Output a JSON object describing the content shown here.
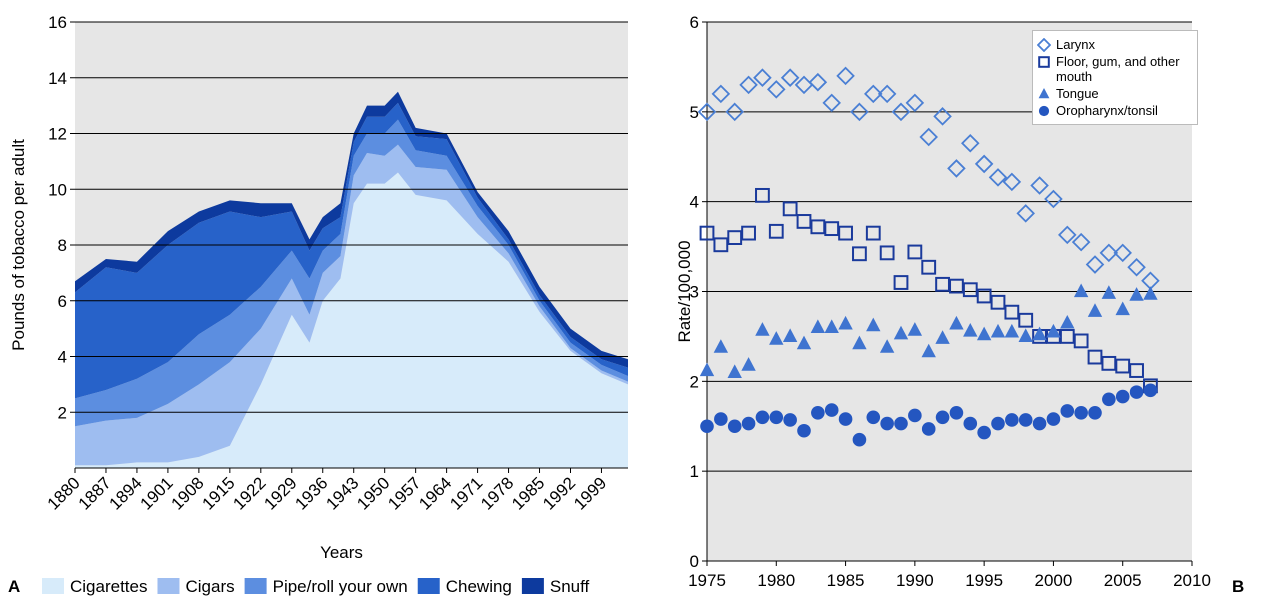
{
  "chart_data": [
    {
      "type": "stacked-area",
      "panel_label": "A",
      "xlabel": "Years",
      "ylabel": "Pounds of tobacco per adult",
      "x": [
        1880,
        1887,
        1894,
        1901,
        1908,
        1915,
        1922,
        1929,
        1933,
        1936,
        1940,
        1943,
        1946,
        1950,
        1953,
        1957,
        1964,
        1971,
        1978,
        1985,
        1992,
        1999,
        2005
      ],
      "series": [
        {
          "name": "Cigarettes",
          "color": "#d7ebfa",
          "values": [
            0.1,
            0.1,
            0.2,
            0.2,
            0.4,
            0.8,
            3.0,
            5.5,
            4.5,
            6.0,
            6.8,
            9.5,
            10.2,
            10.2,
            10.6,
            9.8,
            9.6,
            8.4,
            7.4,
            5.6,
            4.2,
            3.4,
            3.0
          ]
        },
        {
          "name": "Cigars",
          "color": "#9ebdf0",
          "values": [
            1.4,
            1.6,
            1.6,
            2.1,
            2.6,
            3.0,
            2.0,
            1.3,
            1.0,
            1.0,
            0.8,
            1.0,
            1.1,
            1.0,
            1.0,
            1.0,
            1.1,
            0.6,
            0.3,
            0.2,
            0.1,
            0.1,
            0.1
          ]
        },
        {
          "name": "Pipe/roll your own",
          "color": "#5c8ee0",
          "values": [
            1.0,
            1.1,
            1.4,
            1.5,
            1.8,
            1.7,
            1.5,
            1.0,
            1.3,
            0.8,
            0.8,
            0.7,
            0.7,
            0.8,
            0.9,
            0.6,
            0.5,
            0.4,
            0.3,
            0.2,
            0.2,
            0.2,
            0.2
          ]
        },
        {
          "name": "Chewing",
          "color": "#2762c9",
          "values": [
            3.8,
            4.4,
            3.8,
            4.2,
            4.0,
            3.7,
            2.5,
            1.4,
            1.0,
            0.8,
            0.6,
            0.5,
            0.6,
            0.6,
            0.6,
            0.5,
            0.6,
            0.3,
            0.2,
            0.2,
            0.2,
            0.2,
            0.3
          ]
        },
        {
          "name": "Snuff",
          "color": "#0d3a9e",
          "values": [
            0.4,
            0.3,
            0.4,
            0.5,
            0.4,
            0.4,
            0.5,
            0.3,
            0.4,
            0.4,
            0.5,
            0.3,
            0.4,
            0.4,
            0.4,
            0.3,
            0.2,
            0.2,
            0.3,
            0.3,
            0.3,
            0.3,
            0.3
          ]
        }
      ],
      "xlim": [
        1880,
        2005
      ],
      "xticks": [
        1880,
        1887,
        1894,
        1901,
        1908,
        1915,
        1922,
        1929,
        1936,
        1943,
        1950,
        1957,
        1964,
        1971,
        1978,
        1985,
        1992,
        1999
      ],
      "ylim": [
        0,
        16
      ],
      "yticks": [
        2,
        4,
        6,
        8,
        10,
        12,
        14,
        16
      ],
      "grid": true,
      "legend": "bottom"
    },
    {
      "type": "scatter",
      "panel_label": "B",
      "ylabel": "Rate/100,000",
      "x": [
        1975,
        1976,
        1977,
        1978,
        1979,
        1980,
        1981,
        1982,
        1983,
        1984,
        1985,
        1986,
        1987,
        1988,
        1989,
        1990,
        1991,
        1992,
        1993,
        1994,
        1995,
        1996,
        1997,
        1998,
        1999,
        2000,
        2001,
        2002,
        2003,
        2004,
        2005,
        2006,
        2007
      ],
      "series": [
        {
          "name": "Larynx",
          "color": "#4a7fd4",
          "marker": "diamond-open",
          "values": [
            5.0,
            5.2,
            5.0,
            5.3,
            5.38,
            5.25,
            5.38,
            5.3,
            5.33,
            5.1,
            5.4,
            5.0,
            5.2,
            5.2,
            5.0,
            5.1,
            4.72,
            4.95,
            4.37,
            4.65,
            4.42,
            4.27,
            4.22,
            3.87,
            4.18,
            4.03,
            3.63,
            3.55,
            3.3,
            3.43,
            3.43,
            3.27,
            3.12
          ]
        },
        {
          "name": "Floor, gum, and other mouth",
          "color": "#1a3a9c",
          "marker": "square-open",
          "values": [
            3.65,
            3.52,
            3.6,
            3.65,
            4.07,
            3.67,
            3.92,
            3.78,
            3.72,
            3.7,
            3.65,
            3.42,
            3.65,
            3.43,
            3.1,
            3.44,
            3.27,
            3.08,
            3.06,
            3.02,
            2.95,
            2.88,
            2.77,
            2.68,
            2.5,
            2.5,
            2.5,
            2.45,
            2.27,
            2.2,
            2.17,
            2.12,
            1.95
          ]
        },
        {
          "name": "Tongue",
          "color": "#3f74d0",
          "marker": "triangle",
          "values": [
            2.12,
            2.38,
            2.1,
            2.18,
            2.57,
            2.47,
            2.5,
            2.42,
            2.6,
            2.6,
            2.64,
            2.42,
            2.62,
            2.38,
            2.53,
            2.57,
            2.33,
            2.48,
            2.64,
            2.56,
            2.52,
            2.55,
            2.55,
            2.5,
            2.52,
            2.55,
            2.65,
            3.0,
            2.78,
            2.98,
            2.8,
            2.96,
            2.97
          ]
        },
        {
          "name": "Oropharynx/tonsil",
          "color": "#2456c0",
          "marker": "circle",
          "values": [
            1.5,
            1.58,
            1.5,
            1.53,
            1.6,
            1.6,
            1.57,
            1.45,
            1.65,
            1.68,
            1.58,
            1.35,
            1.6,
            1.53,
            1.53,
            1.62,
            1.47,
            1.6,
            1.65,
            1.53,
            1.43,
            1.53,
            1.57,
            1.57,
            1.53,
            1.58,
            1.67,
            1.65,
            1.65,
            1.8,
            1.83,
            1.88,
            1.9
          ]
        }
      ],
      "xlim": [
        1975,
        2010
      ],
      "xticks": [
        1975,
        1980,
        1985,
        1990,
        1995,
        2000,
        2005,
        2010
      ],
      "ylim": [
        0,
        6
      ],
      "yticks": [
        0,
        1,
        2,
        3,
        4,
        5,
        6
      ],
      "grid": true,
      "legend": "upper right"
    }
  ]
}
